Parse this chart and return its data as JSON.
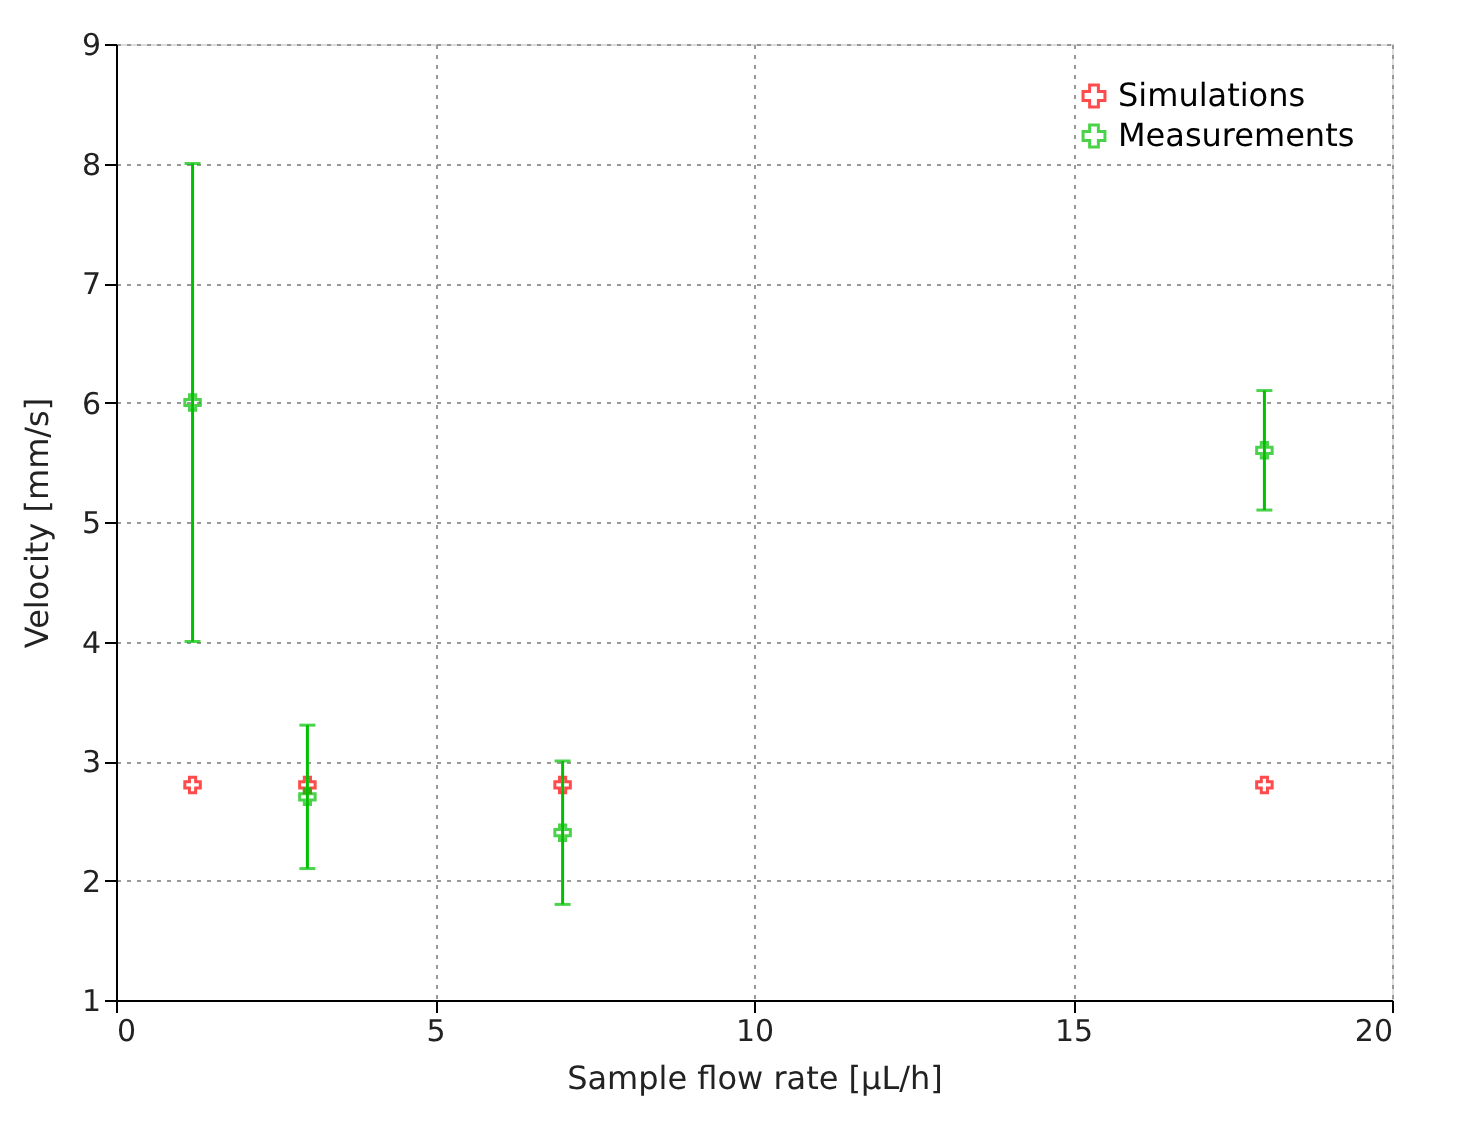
{
  "chart_data": {
    "type": "scatter",
    "xlabel": "Sample flow rate [µL/h]",
    "ylabel": "Velocity [mm/s]",
    "xlim": [
      0,
      20
    ],
    "xticks": [
      0,
      5,
      10,
      15,
      20
    ],
    "ylim": [
      1,
      9
    ],
    "yticks": [
      1,
      2,
      3,
      4,
      5,
      6,
      7,
      8,
      9
    ],
    "grid": true,
    "legend": "top right",
    "marker": "cross",
    "series": [
      {
        "name": "Simulations",
        "color": "#ff0000",
        "x": [
          1.2,
          3,
          7,
          18
        ],
        "values": [
          2.8,
          2.8,
          2.8,
          2.8
        ]
      },
      {
        "name": "Measurements",
        "color": "#00c000",
        "x": [
          1.2,
          3,
          7,
          18
        ],
        "values": [
          6,
          2.7,
          2.4,
          5.6
        ],
        "errors": [
          [
            4,
            8
          ],
          [
            2.1,
            3.3
          ],
          [
            1.8,
            3.0
          ],
          [
            5.1,
            6.1
          ]
        ]
      }
    ]
  }
}
